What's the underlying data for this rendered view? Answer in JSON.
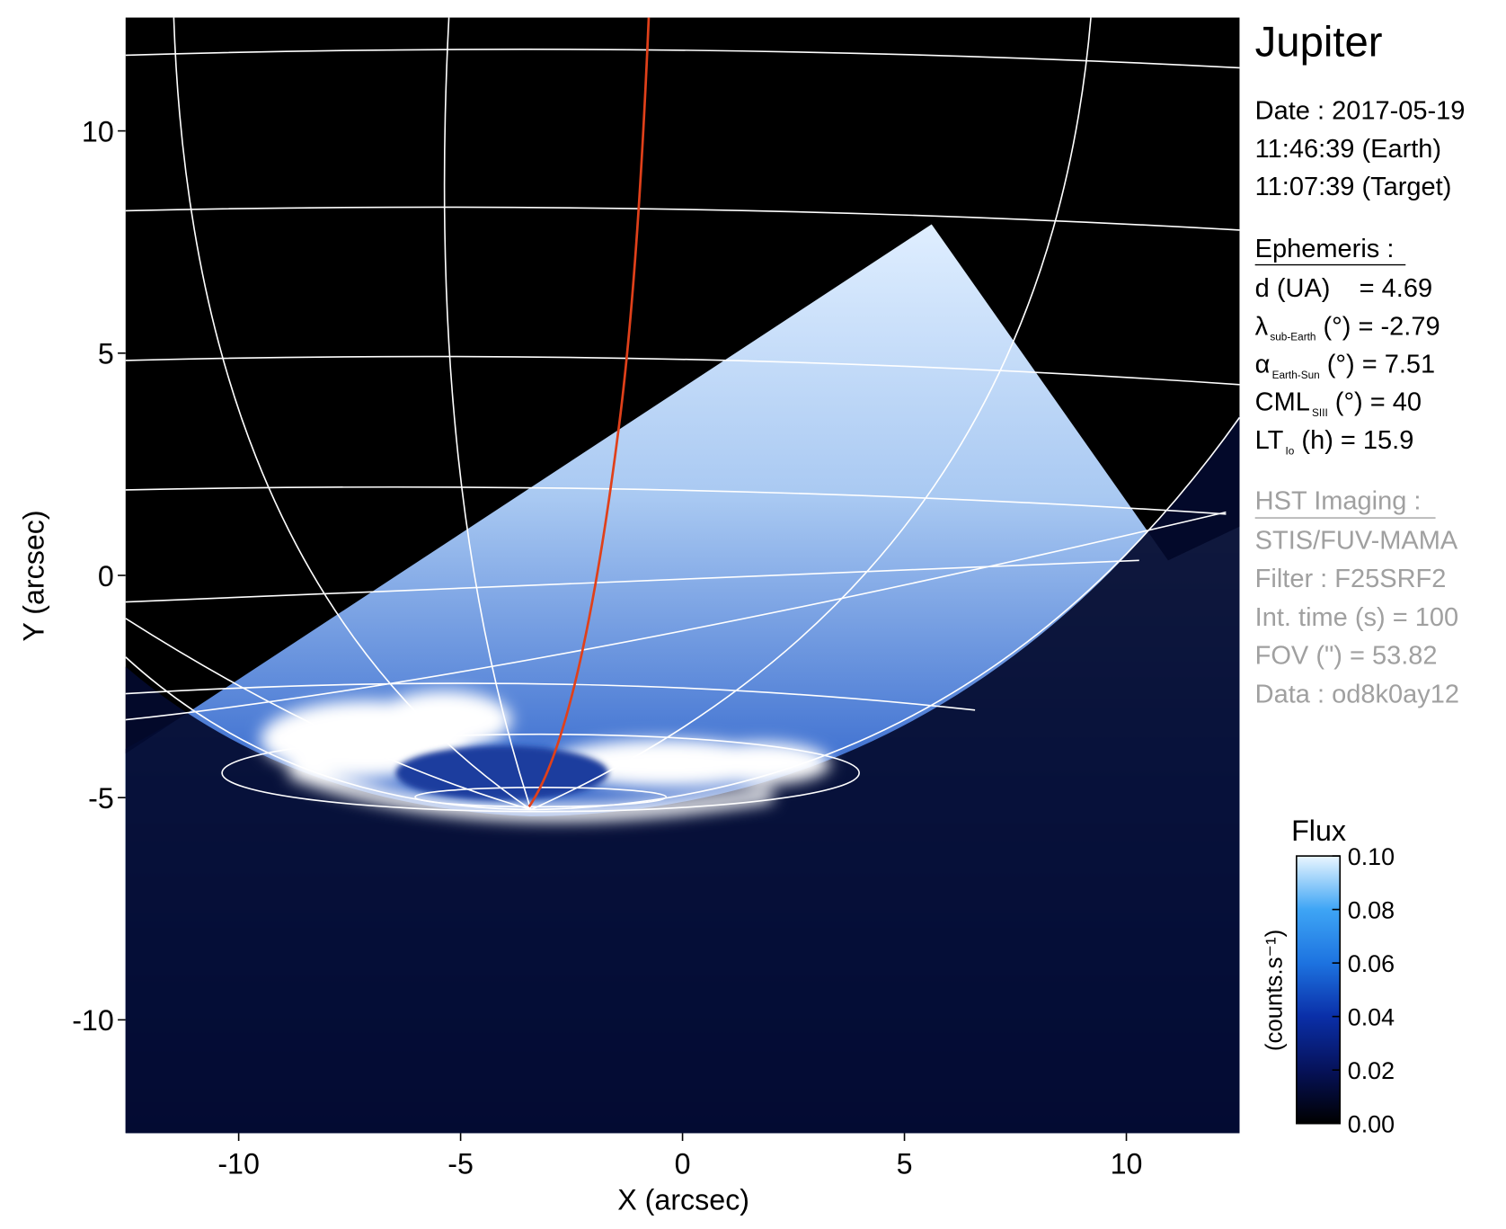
{
  "chart_data": {
    "type": "image",
    "xlabel": "X (arcsec)",
    "ylabel": "Y (arcsec)",
    "xlim": [
      -12.55,
      12.55
    ],
    "ylim": [
      -12.55,
      12.55
    ],
    "xticks": [
      -10,
      -5,
      0,
      5,
      10
    ],
    "yticks": [
      -10,
      -5,
      0,
      5,
      10
    ],
    "colorbar": {
      "title": "Flux",
      "label": "(counts.s⁻¹)",
      "lim": [
        0,
        0.1
      ],
      "ticks": [
        {
          "value": 0,
          "label": "0.00"
        },
        0.02,
        0.04,
        0.06,
        0.08,
        {
          "value": 0.1,
          "label": "0.10"
        }
      ]
    }
  },
  "info": {
    "title": "Jupiter",
    "date": [
      "Date : 2017-05-19",
      "11:46:39 (Earth)",
      "11:07:39 (Target)"
    ],
    "ephemeris": {
      "header": "Ephemeris :",
      "lines": [
        {
          "text": "d (UA)    = 4.69"
        },
        {
          "symbol": "λ",
          "subscript": "sub-Earth",
          "text": " (°) = -2.79"
        },
        {
          "symbol": "α",
          "subscript": "Earth-Sun",
          "text": " (°) = 7.51"
        },
        {
          "symbol": "CML",
          "subscript": "SIII",
          "text": " (°) = 40"
        },
        {
          "symbol": "LT",
          "subscript": "Io",
          "text": " (h) = 15.9"
        }
      ]
    },
    "imaging": {
      "header": "HST Imaging :",
      "lines": [
        "STIS/FUV-MAMA",
        "Filter : F25SRF2",
        "Int. time (s) = 100",
        "FOV (\") = 53.82",
        "Data : od8k0ay12"
      ]
    }
  }
}
